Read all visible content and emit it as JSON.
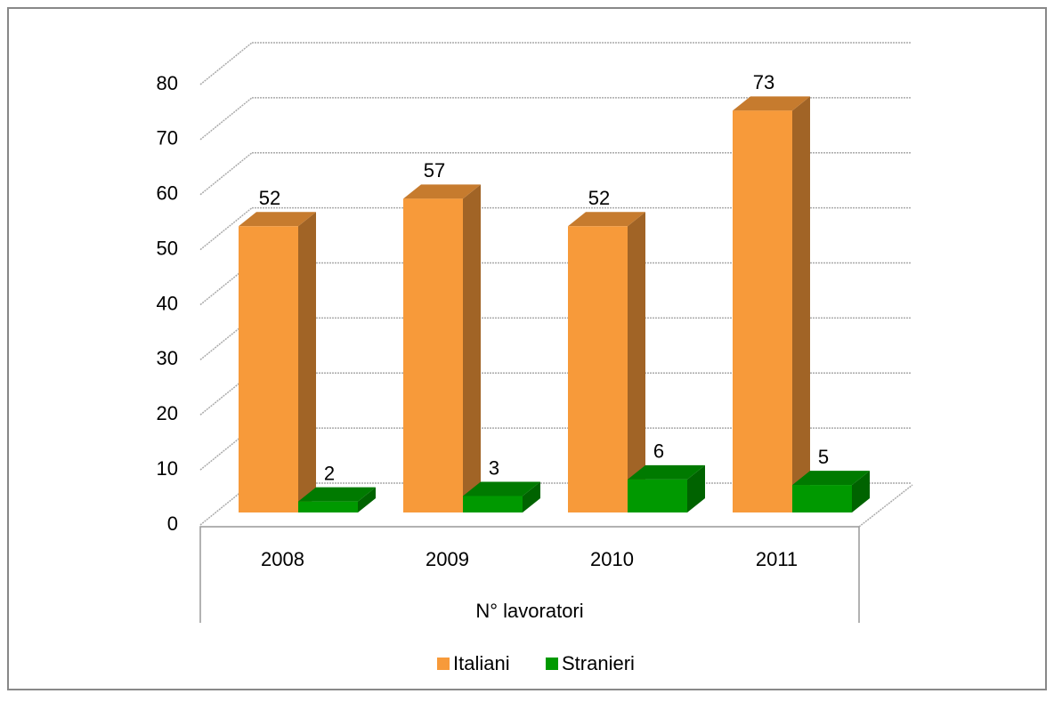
{
  "chart_data": {
    "type": "bar3d",
    "categories": [
      "2008",
      "2009",
      "2010",
      "2011"
    ],
    "xlabel": "N° lavoratori",
    "series": [
      {
        "name": "Italiani",
        "color": "#f79a3a",
        "values": [
          52,
          57,
          52,
          73
        ]
      },
      {
        "name": "Stranieri",
        "color": "#009900",
        "values": [
          2,
          3,
          6,
          5
        ]
      }
    ],
    "ylim": [
      0,
      80
    ],
    "yticks": [
      0,
      10,
      20,
      30,
      40,
      50,
      60,
      70,
      80
    ],
    "grid": true,
    "legend": "bottom"
  }
}
